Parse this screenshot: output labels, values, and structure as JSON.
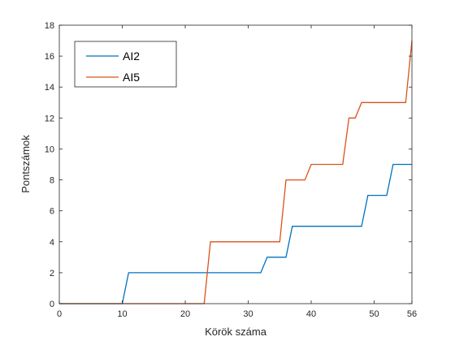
{
  "chart_data": {
    "type": "line",
    "xlabel": "Körök száma",
    "ylabel": "Pontszámok",
    "xlim": [
      0,
      56
    ],
    "ylim": [
      0,
      18
    ],
    "xticks": [
      0,
      10,
      20,
      30,
      40,
      50,
      56
    ],
    "yticks": [
      0,
      2,
      4,
      6,
      8,
      10,
      12,
      14,
      16,
      18
    ],
    "grid": false,
    "legend_position": "top-left",
    "series": [
      {
        "name": "AI2",
        "color": "#0072BD",
        "points": [
          [
            0,
            0
          ],
          [
            10,
            0
          ],
          [
            11,
            2
          ],
          [
            32,
            2
          ],
          [
            33,
            3
          ],
          [
            36,
            3
          ],
          [
            37,
            5
          ],
          [
            48,
            5
          ],
          [
            49,
            7
          ],
          [
            52,
            7
          ],
          [
            53,
            9
          ],
          [
            56,
            9
          ]
        ]
      },
      {
        "name": "AI5",
        "color": "#D95319",
        "points": [
          [
            0,
            0
          ],
          [
            23,
            0
          ],
          [
            24,
            4
          ],
          [
            35,
            4
          ],
          [
            36,
            8
          ],
          [
            39,
            8
          ],
          [
            40,
            9
          ],
          [
            45,
            9
          ],
          [
            46,
            12
          ],
          [
            47,
            12
          ],
          [
            48,
            13
          ],
          [
            55,
            13
          ],
          [
            56,
            17
          ]
        ]
      }
    ]
  }
}
